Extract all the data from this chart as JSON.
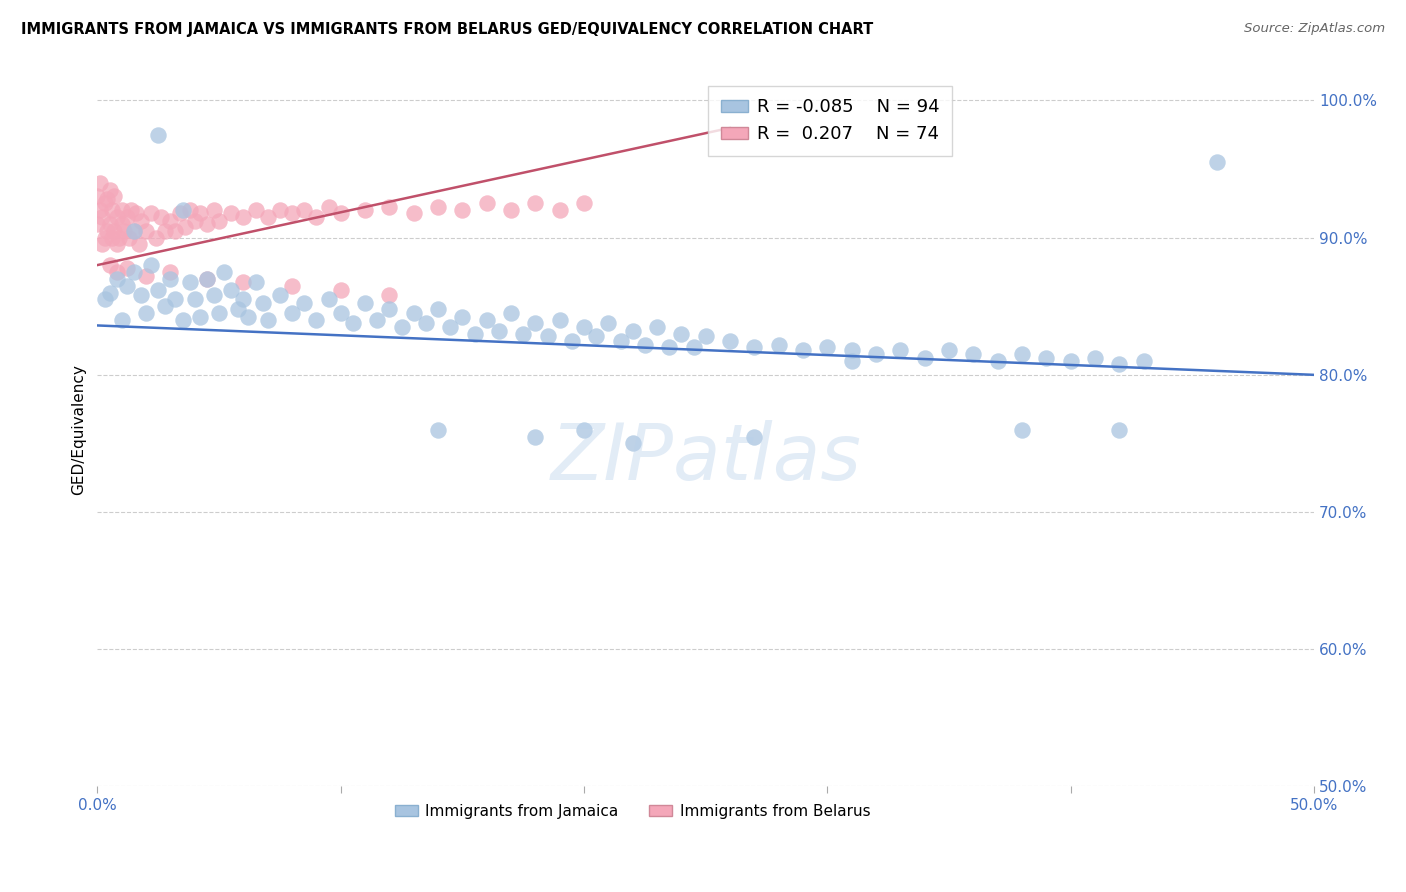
{
  "title": "IMMIGRANTS FROM JAMAICA VS IMMIGRANTS FROM BELARUS GED/EQUIVALENCY CORRELATION CHART",
  "source": "Source: ZipAtlas.com",
  "ylabel": "GED/Equivalency",
  "xlim": [
    0.0,
    0.5
  ],
  "ylim": [
    0.5,
    1.02
  ],
  "yticks_right": [
    1.0,
    0.9,
    0.8,
    0.7,
    0.6,
    0.5
  ],
  "ytick_labels_right": [
    "100.0%",
    "90.0%",
    "80.0%",
    "70.0%",
    "60.0%",
    "50.0%"
  ],
  "xticks": [
    0.0,
    0.1,
    0.2,
    0.3,
    0.4,
    0.5
  ],
  "xtick_labels": [
    "0.0%",
    "",
    "",
    "",
    "",
    "50.0%"
  ],
  "legend_jamaica_R": "-0.085",
  "legend_jamaica_N": "94",
  "legend_belarus_R": "0.207",
  "legend_belarus_N": "74",
  "jamaica_color": "#a8c4e0",
  "belarus_color": "#f4a7b9",
  "jamaica_line_color": "#4472c4",
  "belarus_line_color": "#c0506a",
  "watermark": "ZIPatlas",
  "background_color": "#ffffff",
  "grid_color": "#c8c8c8",
  "jamaica_x": [
    0.003,
    0.005,
    0.008,
    0.01,
    0.012,
    0.015,
    0.018,
    0.02,
    0.022,
    0.025,
    0.028,
    0.03,
    0.032,
    0.035,
    0.038,
    0.04,
    0.042,
    0.045,
    0.048,
    0.05,
    0.052,
    0.055,
    0.058,
    0.06,
    0.062,
    0.065,
    0.068,
    0.07,
    0.075,
    0.08,
    0.085,
    0.09,
    0.095,
    0.1,
    0.105,
    0.11,
    0.115,
    0.12,
    0.125,
    0.13,
    0.135,
    0.14,
    0.145,
    0.15,
    0.155,
    0.16,
    0.165,
    0.17,
    0.175,
    0.18,
    0.185,
    0.19,
    0.195,
    0.2,
    0.205,
    0.21,
    0.215,
    0.22,
    0.225,
    0.23,
    0.235,
    0.24,
    0.245,
    0.25,
    0.26,
    0.27,
    0.28,
    0.29,
    0.3,
    0.31,
    0.32,
    0.33,
    0.34,
    0.35,
    0.36,
    0.37,
    0.38,
    0.39,
    0.4,
    0.41,
    0.42,
    0.43,
    0.015,
    0.025,
    0.035,
    0.14,
    0.2,
    0.27,
    0.31,
    0.38,
    0.18,
    0.22,
    0.42,
    0.46
  ],
  "jamaica_y": [
    0.855,
    0.86,
    0.87,
    0.84,
    0.865,
    0.875,
    0.858,
    0.845,
    0.88,
    0.862,
    0.85,
    0.87,
    0.855,
    0.84,
    0.868,
    0.855,
    0.842,
    0.87,
    0.858,
    0.845,
    0.875,
    0.862,
    0.848,
    0.855,
    0.842,
    0.868,
    0.852,
    0.84,
    0.858,
    0.845,
    0.852,
    0.84,
    0.855,
    0.845,
    0.838,
    0.852,
    0.84,
    0.848,
    0.835,
    0.845,
    0.838,
    0.848,
    0.835,
    0.842,
    0.83,
    0.84,
    0.832,
    0.845,
    0.83,
    0.838,
    0.828,
    0.84,
    0.825,
    0.835,
    0.828,
    0.838,
    0.825,
    0.832,
    0.822,
    0.835,
    0.82,
    0.83,
    0.82,
    0.828,
    0.825,
    0.82,
    0.822,
    0.818,
    0.82,
    0.818,
    0.815,
    0.818,
    0.812,
    0.818,
    0.815,
    0.81,
    0.815,
    0.812,
    0.81,
    0.812,
    0.808,
    0.81,
    0.905,
    0.975,
    0.92,
    0.76,
    0.76,
    0.755,
    0.81,
    0.76,
    0.755,
    0.75,
    0.76,
    0.955
  ],
  "belarus_x": [
    0.0,
    0.0,
    0.001,
    0.001,
    0.002,
    0.002,
    0.003,
    0.003,
    0.004,
    0.004,
    0.005,
    0.005,
    0.006,
    0.006,
    0.007,
    0.007,
    0.008,
    0.008,
    0.009,
    0.01,
    0.01,
    0.011,
    0.012,
    0.013,
    0.014,
    0.015,
    0.016,
    0.017,
    0.018,
    0.02,
    0.022,
    0.024,
    0.026,
    0.028,
    0.03,
    0.032,
    0.034,
    0.036,
    0.038,
    0.04,
    0.042,
    0.045,
    0.048,
    0.05,
    0.055,
    0.06,
    0.065,
    0.07,
    0.075,
    0.08,
    0.085,
    0.09,
    0.095,
    0.1,
    0.11,
    0.12,
    0.13,
    0.14,
    0.15,
    0.16,
    0.17,
    0.18,
    0.19,
    0.2,
    0.005,
    0.008,
    0.012,
    0.02,
    0.03,
    0.045,
    0.06,
    0.08,
    0.1,
    0.12
  ],
  "belarus_y": [
    0.91,
    0.93,
    0.92,
    0.94,
    0.895,
    0.915,
    0.9,
    0.925,
    0.905,
    0.928,
    0.91,
    0.935,
    0.9,
    0.92,
    0.905,
    0.93,
    0.895,
    0.915,
    0.9,
    0.91,
    0.92,
    0.905,
    0.915,
    0.9,
    0.92,
    0.905,
    0.918,
    0.895,
    0.912,
    0.905,
    0.918,
    0.9,
    0.915,
    0.905,
    0.912,
    0.905,
    0.918,
    0.908,
    0.92,
    0.912,
    0.918,
    0.91,
    0.92,
    0.912,
    0.918,
    0.915,
    0.92,
    0.915,
    0.92,
    0.918,
    0.92,
    0.915,
    0.922,
    0.918,
    0.92,
    0.922,
    0.918,
    0.922,
    0.92,
    0.925,
    0.92,
    0.925,
    0.92,
    0.925,
    0.88,
    0.875,
    0.878,
    0.872,
    0.875,
    0.87,
    0.868,
    0.865,
    0.862,
    0.858
  ],
  "jam_line_x": [
    0.0,
    0.5
  ],
  "jam_line_y": [
    0.836,
    0.8
  ],
  "bel_line_x": [
    0.0,
    0.26
  ],
  "bel_line_y": [
    0.88,
    0.98
  ]
}
